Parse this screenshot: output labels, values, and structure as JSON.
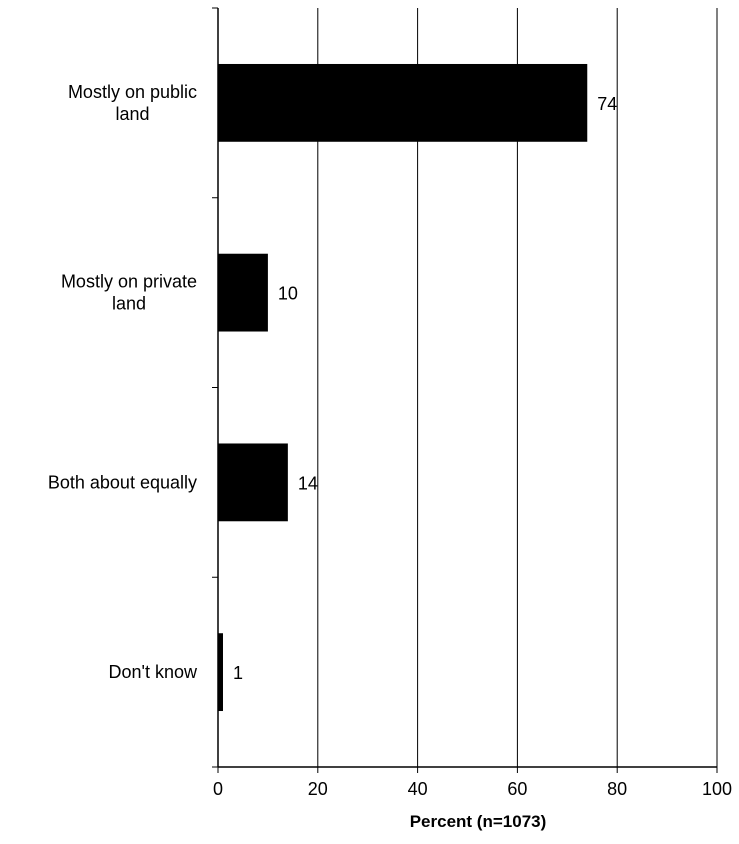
{
  "chart_data": {
    "type": "bar",
    "orientation": "horizontal",
    "categories": [
      [
        "Mostly on public",
        "land"
      ],
      [
        "Mostly on private",
        "land"
      ],
      [
        "Both about equally"
      ],
      [
        "Don't know"
      ]
    ],
    "values": [
      74,
      10,
      14,
      1
    ],
    "data_labels": [
      "74",
      "10",
      "14",
      "1"
    ],
    "xlabel": "Percent (n=1073)",
    "xlim": [
      0,
      100
    ],
    "xticks": [
      0,
      20,
      40,
      60,
      80,
      100
    ],
    "xtick_labels": [
      "0",
      "20",
      "40",
      "60",
      "80",
      "100"
    ],
    "grid": "vertical",
    "legend": "none",
    "bar_color": "#000000"
  }
}
